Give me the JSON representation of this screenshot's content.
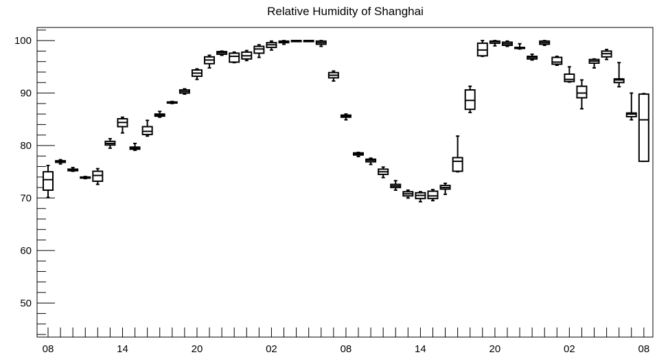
{
  "chart_data": {
    "type": "box",
    "title": "Relative Humidity of Shanghai",
    "xlabel": "",
    "ylabel": "",
    "ylim": [
      43.5,
      102.5
    ],
    "yticks": [
      50,
      60,
      70,
      80,
      90,
      100
    ],
    "x_tick_labels": [
      "08",
      "14",
      "20",
      "02",
      "08",
      "14",
      "20",
      "02",
      "08"
    ],
    "x_tick_positions": [
      0,
      6,
      12,
      18,
      24,
      30,
      36,
      42,
      48
    ],
    "grid": false,
    "legend": "none",
    "boxes": [
      {
        "x": 0,
        "min": 70.1,
        "q1": 71.5,
        "median": 73.5,
        "q3": 75.0,
        "max": 76.2
      },
      {
        "x": 1,
        "min": 76.5,
        "q1": 76.8,
        "median": 77.0,
        "q3": 77.1,
        "max": 77.3
      },
      {
        "x": 2,
        "min": 75.1,
        "q1": 75.2,
        "median": 75.4,
        "q3": 75.5,
        "max": 75.8
      },
      {
        "x": 3,
        "min": 73.7,
        "q1": 73.8,
        "median": 73.9,
        "q3": 74.0,
        "max": 74.1
      },
      {
        "x": 4,
        "min": 72.6,
        "q1": 73.2,
        "median": 74.3,
        "q3": 75.1,
        "max": 75.6
      },
      {
        "x": 5,
        "min": 79.5,
        "q1": 80.1,
        "median": 80.4,
        "q3": 80.8,
        "max": 81.3
      },
      {
        "x": 6,
        "min": 82.4,
        "q1": 83.6,
        "median": 84.4,
        "q3": 85.1,
        "max": 85.4
      },
      {
        "x": 7,
        "min": 79.1,
        "q1": 79.3,
        "median": 79.5,
        "q3": 79.7,
        "max": 80.4
      },
      {
        "x": 8,
        "min": 81.8,
        "q1": 82.1,
        "median": 82.7,
        "q3": 83.6,
        "max": 84.8
      },
      {
        "x": 9,
        "min": 85.4,
        "q1": 85.6,
        "median": 85.8,
        "q3": 86.0,
        "max": 86.5
      },
      {
        "x": 10,
        "min": 88.0,
        "q1": 88.1,
        "median": 88.2,
        "q3": 88.3,
        "max": 88.4
      },
      {
        "x": 11,
        "min": 89.8,
        "q1": 90.0,
        "median": 90.3,
        "q3": 90.6,
        "max": 90.8
      },
      {
        "x": 12,
        "min": 92.6,
        "q1": 93.2,
        "median": 93.8,
        "q3": 94.4,
        "max": 94.6
      },
      {
        "x": 13,
        "min": 94.8,
        "q1": 95.6,
        "median": 96.3,
        "q3": 96.9,
        "max": 97.2
      },
      {
        "x": 14,
        "min": 97.2,
        "q1": 97.4,
        "median": 97.7,
        "q3": 97.9,
        "max": 98.0
      },
      {
        "x": 15,
        "min": 95.8,
        "q1": 95.9,
        "median": 97.0,
        "q3": 97.6,
        "max": 97.8
      },
      {
        "x": 16,
        "min": 96.2,
        "q1": 96.5,
        "median": 97.1,
        "q3": 97.8,
        "max": 98.1
      },
      {
        "x": 17,
        "min": 96.8,
        "q1": 97.6,
        "median": 98.4,
        "q3": 98.9,
        "max": 99.2
      },
      {
        "x": 18,
        "min": 98.2,
        "q1": 98.7,
        "median": 99.2,
        "q3": 99.6,
        "max": 99.9
      },
      {
        "x": 19,
        "min": 99.3,
        "q1": 99.6,
        "median": 99.8,
        "q3": 99.9,
        "max": 100.0
      },
      {
        "x": 20,
        "min": 99.9,
        "q1": 99.95,
        "median": 100.0,
        "q3": 100.0,
        "max": 100.0
      },
      {
        "x": 21,
        "min": 99.9,
        "q1": 99.95,
        "median": 100.0,
        "q3": 100.0,
        "max": 100.0
      },
      {
        "x": 22,
        "min": 98.9,
        "q1": 99.3,
        "median": 99.6,
        "q3": 99.9,
        "max": 100.0
      },
      {
        "x": 23,
        "min": 92.3,
        "q1": 92.9,
        "median": 93.4,
        "q3": 93.9,
        "max": 94.2
      },
      {
        "x": 24,
        "min": 84.9,
        "q1": 85.4,
        "median": 85.6,
        "q3": 85.8,
        "max": 86.0
      },
      {
        "x": 25,
        "min": 77.9,
        "q1": 78.2,
        "median": 78.4,
        "q3": 78.6,
        "max": 78.7
      },
      {
        "x": 26,
        "min": 76.4,
        "q1": 76.9,
        "median": 77.2,
        "q3": 77.4,
        "max": 77.6
      },
      {
        "x": 27,
        "min": 73.9,
        "q1": 74.5,
        "median": 75.0,
        "q3": 75.5,
        "max": 75.9
      },
      {
        "x": 28,
        "min": 71.5,
        "q1": 72.0,
        "median": 72.3,
        "q3": 72.6,
        "max": 73.3
      },
      {
        "x": 29,
        "min": 70.0,
        "q1": 70.4,
        "median": 70.8,
        "q3": 71.2,
        "max": 71.5
      },
      {
        "x": 30,
        "min": 69.3,
        "q1": 69.9,
        "median": 70.5,
        "q3": 71.0,
        "max": 71.2
      },
      {
        "x": 31,
        "min": 69.5,
        "q1": 69.9,
        "median": 70.4,
        "q3": 71.3,
        "max": 71.6
      },
      {
        "x": 32,
        "min": 70.7,
        "q1": 71.7,
        "median": 72.0,
        "q3": 72.4,
        "max": 72.8
      },
      {
        "x": 33,
        "min": 75.0,
        "q1": 75.1,
        "median": 77.0,
        "q3": 77.7,
        "max": 81.8
      },
      {
        "x": 34,
        "min": 86.3,
        "q1": 86.9,
        "median": 88.6,
        "q3": 90.6,
        "max": 91.3
      },
      {
        "x": 35,
        "min": 97.0,
        "q1": 97.1,
        "median": 98.2,
        "q3": 99.5,
        "max": 100.0
      },
      {
        "x": 36,
        "min": 99.0,
        "q1": 99.5,
        "median": 99.8,
        "q3": 99.9,
        "max": 100.0
      },
      {
        "x": 37,
        "min": 98.9,
        "q1": 99.1,
        "median": 99.4,
        "q3": 99.7,
        "max": 99.9
      },
      {
        "x": 38,
        "min": 98.4,
        "q1": 98.5,
        "median": 98.6,
        "q3": 98.7,
        "max": 99.4
      },
      {
        "x": 39,
        "min": 96.3,
        "q1": 96.5,
        "median": 96.8,
        "q3": 97.0,
        "max": 97.4
      },
      {
        "x": 40,
        "min": 99.1,
        "q1": 99.3,
        "median": 99.6,
        "q3": 99.9,
        "max": 100.0
      },
      {
        "x": 41,
        "min": 95.3,
        "q1": 95.5,
        "median": 95.9,
        "q3": 96.8,
        "max": 97.0
      },
      {
        "x": 42,
        "min": 92.1,
        "q1": 92.2,
        "median": 92.6,
        "q3": 93.6,
        "max": 95.0
      },
      {
        "x": 43,
        "min": 87.0,
        "q1": 89.1,
        "median": 90.0,
        "q3": 91.3,
        "max": 92.5
      },
      {
        "x": 44,
        "min": 94.8,
        "q1": 95.7,
        "median": 96.1,
        "q3": 96.4,
        "max": 96.5
      },
      {
        "x": 45,
        "min": 96.4,
        "q1": 96.9,
        "median": 97.5,
        "q3": 98.0,
        "max": 98.3
      },
      {
        "x": 46,
        "min": 91.2,
        "q1": 92.0,
        "median": 92.5,
        "q3": 92.7,
        "max": 95.8
      },
      {
        "x": 47,
        "min": 84.9,
        "q1": 85.5,
        "median": 86.0,
        "q3": 86.2,
        "max": 90.0
      },
      {
        "x": 48,
        "min": 77.0,
        "q1": 77.0,
        "median": 84.9,
        "q3": 89.8,
        "max": 89.9
      }
    ],
    "colors": {
      "axis": "#000000",
      "box": "#000000",
      "background": "#ffffff"
    }
  }
}
